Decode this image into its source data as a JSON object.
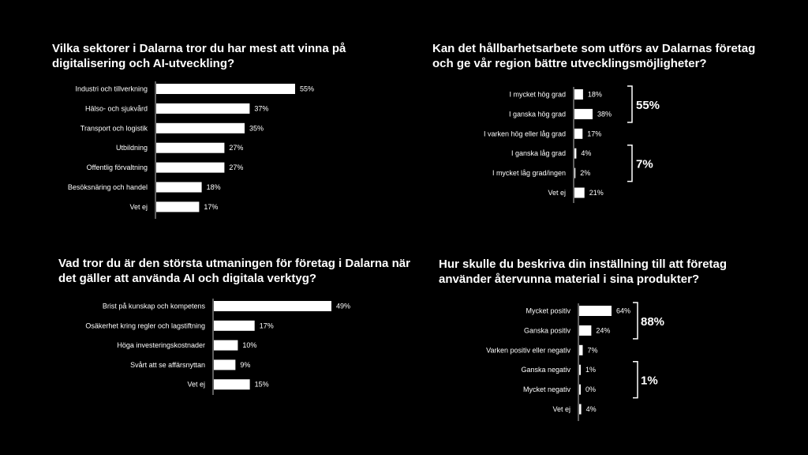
{
  "chart_data": [
    {
      "type": "bar",
      "orientation": "horizontal",
      "title": "Vilka sektorer i Dalarna tror du har mest att vinna på digitalisering och AI-utveckling?",
      "categories": [
        "Industri och tillverkning",
        "Hälso- och sjukvård",
        "Transport och logistik",
        "Utbildning",
        "Offentlig förvaltning",
        "Besöksnäring och handel",
        "Vet ej"
      ],
      "values": [
        55,
        37,
        35,
        27,
        27,
        18,
        17
      ],
      "value_labels": [
        "55%",
        "37%",
        "35%",
        "27%",
        "27%",
        "18%",
        "17%"
      ],
      "unit": "%",
      "xlim": [
        0,
        100
      ],
      "groups": []
    },
    {
      "type": "bar",
      "orientation": "horizontal",
      "title": "Kan det hållbarhetsarbete som utförs av Dalarnas företag och ge vår region bättre utvecklingsmöjligheter?",
      "categories": [
        "I mycket hög grad",
        "I ganska hög grad",
        "I varken hög eller låg grad",
        "I ganska låg grad",
        "I mycket låg grad/ingen",
        "Vet ej"
      ],
      "values": [
        18,
        38,
        17,
        4,
        2,
        21
      ],
      "value_labels": [
        "18%",
        "38%",
        "17%",
        "4%",
        "2%",
        "21%"
      ],
      "unit": "%",
      "xlim": [
        0,
        100
      ],
      "groups": [
        {
          "from": 0,
          "to": 1,
          "label": "55%"
        },
        {
          "from": 3,
          "to": 4,
          "label": "7%"
        }
      ]
    },
    {
      "type": "bar",
      "orientation": "horizontal",
      "title": "Vad tror du är den största utmaningen för företag i Dalarna när det gäller att använda AI och digitala verktyg?",
      "categories": [
        "Brist på kunskap och kompetens",
        "Osäkerhet kring regler och lagstiftning",
        "Höga investeringskostnader",
        "Svårt att se affärsnyttan",
        "Vet ej"
      ],
      "values": [
        49,
        17,
        10,
        9,
        15
      ],
      "value_labels": [
        "49%",
        "17%",
        "10%",
        "9%",
        "15%"
      ],
      "unit": "%",
      "xlim": [
        0,
        100
      ],
      "groups": []
    },
    {
      "type": "bar",
      "orientation": "horizontal",
      "title": "Hur skulle du beskriva din inställning till att företag använder återvunna material i sina produkter?",
      "categories": [
        "Mycket positiv",
        "Ganska positiv",
        "Varken positiv eller negativ",
        "Ganska negativ",
        "Mycket negativ",
        "Vet ej"
      ],
      "values": [
        64,
        24,
        7,
        1,
        0,
        4
      ],
      "value_labels": [
        "64%",
        "24%",
        "7%",
        "1%",
        "0%",
        "4%"
      ],
      "unit": "%",
      "xlim": [
        0,
        100
      ],
      "groups": [
        {
          "from": 0,
          "to": 1,
          "label": "88%"
        },
        {
          "from": 3,
          "to": 4,
          "label": "1%"
        }
      ]
    }
  ]
}
